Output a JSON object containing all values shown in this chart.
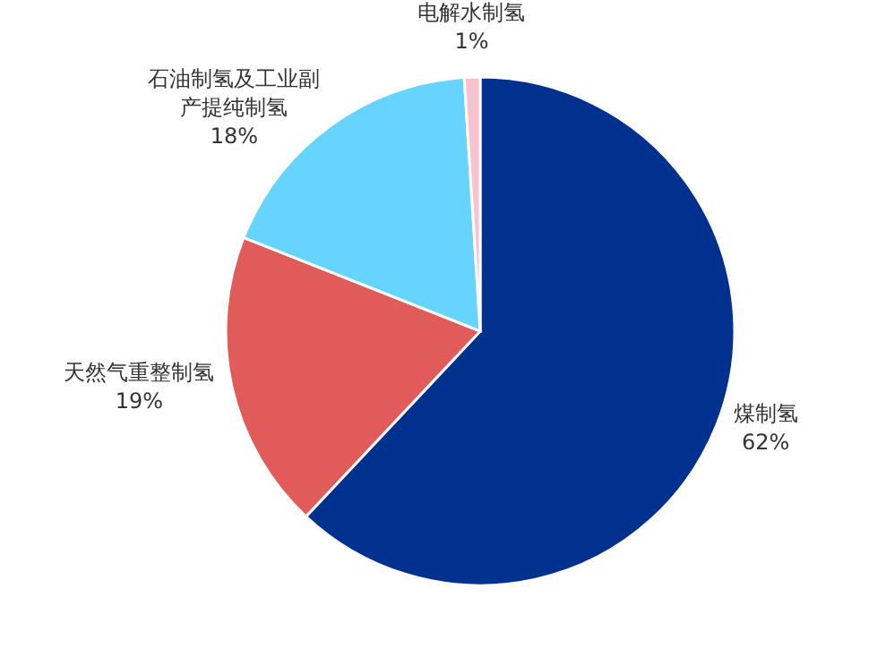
{
  "chart_data": {
    "type": "pie",
    "categories": [
      "煤制氢",
      "天然气重整制氢",
      "石油制氢及工业副产提纯制氢",
      "电解水制氢"
    ],
    "values": [
      62,
      19,
      18,
      1
    ],
    "colors": [
      "#00318f",
      "#e15b5b",
      "#66d4ff",
      "#f6c3cf"
    ],
    "value_labels": [
      "62%",
      "19%",
      "18%",
      "1%"
    ]
  }
}
